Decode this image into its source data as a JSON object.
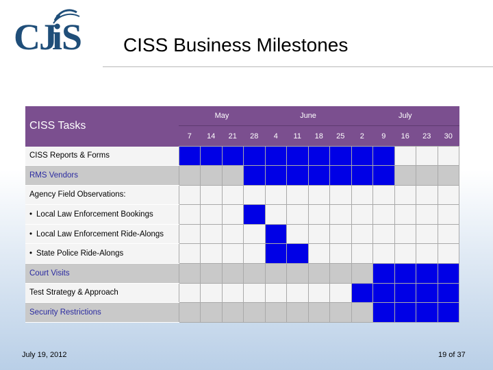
{
  "header": {
    "logo_text": "CJIS",
    "title": "CISS Business Milestones"
  },
  "gantt": {
    "task_header": "CISS Tasks",
    "months": [
      {
        "label": "May",
        "span": 4
      },
      {
        "label": "June",
        "span": 4
      },
      {
        "label": "July",
        "span": 5
      }
    ],
    "weeks": [
      "7",
      "14",
      "21",
      "28",
      "4",
      "11",
      "18",
      "25",
      "2",
      "9",
      "16",
      "23",
      "30"
    ],
    "rows": [
      {
        "label": "CISS Reports & Forms",
        "bullet": false,
        "shade": "white",
        "active": [
          1,
          1,
          1,
          1,
          1,
          1,
          1,
          1,
          1,
          1,
          0,
          0,
          0
        ]
      },
      {
        "label": "RMS Vendors",
        "bullet": false,
        "shade": "gray",
        "active": [
          0,
          0,
          0,
          1,
          1,
          1,
          1,
          1,
          1,
          1,
          0,
          0,
          0
        ]
      },
      {
        "label": "Agency Field Observations:",
        "bullet": false,
        "shade": "white",
        "active": [
          0,
          0,
          0,
          0,
          0,
          0,
          0,
          0,
          0,
          0,
          0,
          0,
          0
        ]
      },
      {
        "label": "Local Law Enforcement Bookings",
        "bullet": true,
        "shade": "white",
        "active": [
          0,
          0,
          0,
          1,
          0,
          0,
          0,
          0,
          0,
          0,
          0,
          0,
          0
        ]
      },
      {
        "label": "Local Law Enforcement Ride-Alongs",
        "bullet": true,
        "shade": "white",
        "active": [
          0,
          0,
          0,
          0,
          1,
          0,
          0,
          0,
          0,
          0,
          0,
          0,
          0
        ]
      },
      {
        "label": "State Police Ride-Alongs",
        "bullet": true,
        "shade": "white",
        "active": [
          0,
          0,
          0,
          0,
          1,
          1,
          0,
          0,
          0,
          0,
          0,
          0,
          0
        ]
      },
      {
        "label": "Court Visits",
        "bullet": false,
        "shade": "gray",
        "active": [
          0,
          0,
          0,
          0,
          0,
          0,
          0,
          0,
          0,
          1,
          1,
          1,
          1
        ]
      },
      {
        "label": "Test Strategy & Approach",
        "bullet": false,
        "shade": "white",
        "active": [
          0,
          0,
          0,
          0,
          0,
          0,
          0,
          0,
          1,
          1,
          1,
          1,
          1
        ]
      },
      {
        "label": "Security Restrictions",
        "bullet": false,
        "shade": "gray",
        "active": [
          0,
          0,
          0,
          0,
          0,
          0,
          0,
          0,
          0,
          1,
          1,
          1,
          1
        ]
      }
    ]
  },
  "footer": {
    "date": "July 19, 2012",
    "page": "19 of 37"
  }
}
